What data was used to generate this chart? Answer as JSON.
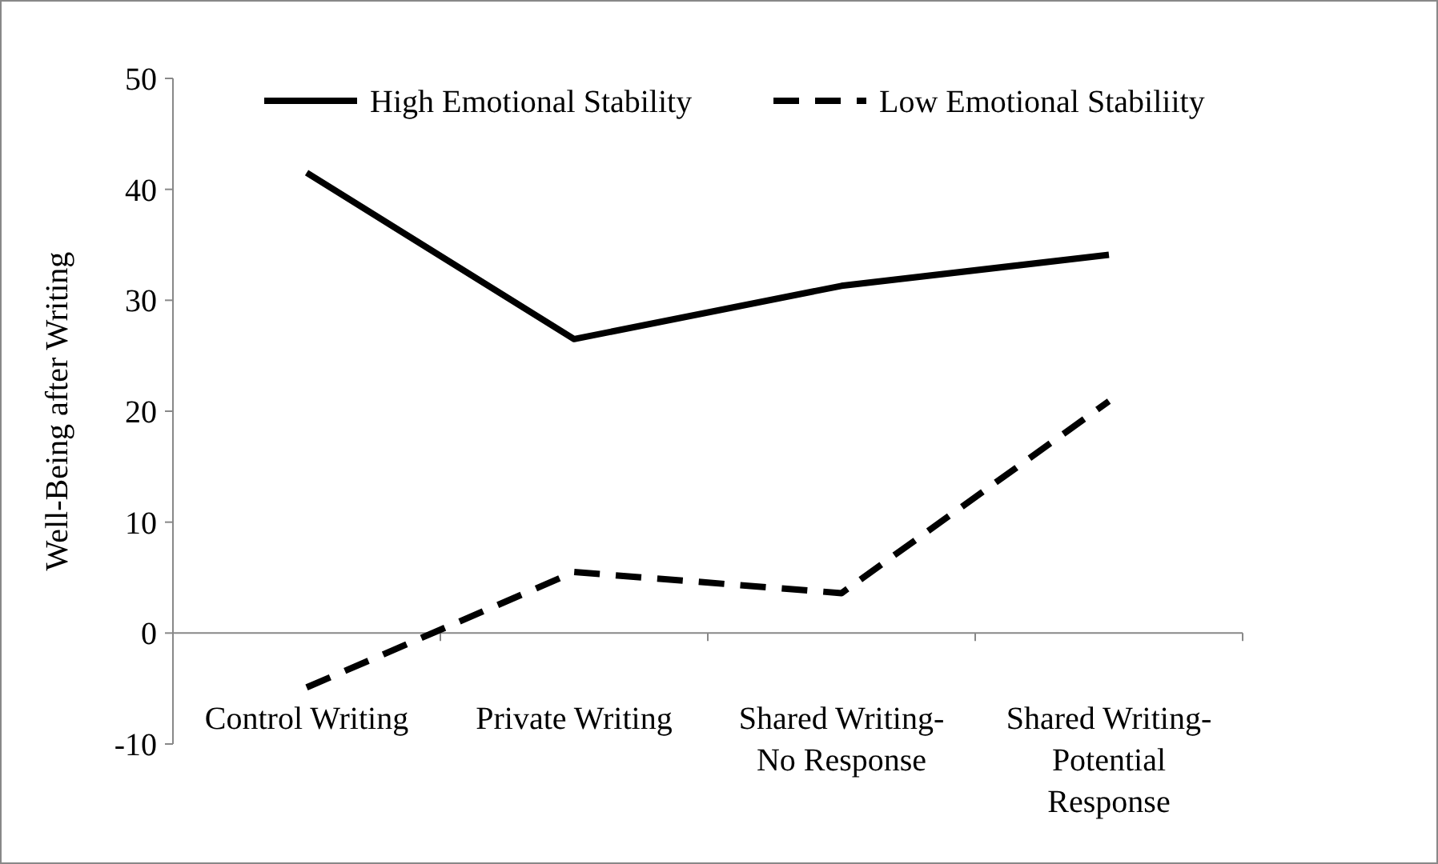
{
  "chart_data": {
    "type": "line",
    "ylabel": "Well-Being after Writing",
    "categories": [
      "Control Writing",
      "Private Writing",
      "Shared Writing- No Response",
      "Shared Writing- Potential Response"
    ],
    "series": [
      {
        "name": "High Emotional Stability",
        "color": "#000000",
        "line_style": "solid",
        "values": [
          41.5,
          26.5,
          31.3,
          34.1
        ]
      },
      {
        "name": "Low Emotional Stabiliity",
        "color": "#000000",
        "line_style": "dashed",
        "values": [
          -4.9,
          5.5,
          3.6,
          20.9
        ]
      }
    ],
    "ylim": [
      -10,
      50
    ],
    "yticks": [
      -10,
      0,
      10,
      20,
      30,
      40,
      50
    ],
    "grid": false,
    "legend": "top"
  }
}
